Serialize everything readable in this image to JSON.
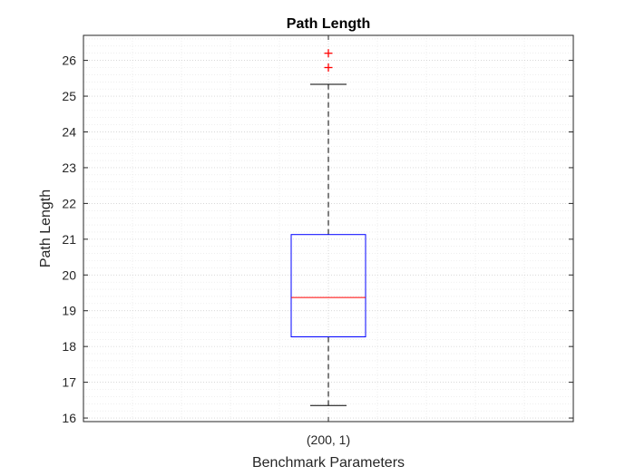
{
  "chart_data": {
    "type": "box",
    "title": "Path Length",
    "xlabel": "Benchmark Parameters",
    "ylabel": "Path Length",
    "categories": [
      "(200, 1)"
    ],
    "ylim": [
      15.9,
      26.7
    ],
    "yticks": [
      16,
      17,
      18,
      19,
      20,
      21,
      22,
      23,
      24,
      25,
      26
    ],
    "grid": true,
    "minor_grid": true,
    "boxes": [
      {
        "category": "(200, 1)",
        "whisker_low": 16.35,
        "q1": 18.27,
        "median": 19.37,
        "q3": 21.13,
        "whisker_high": 25.33,
        "outliers": [
          25.8,
          26.2
        ]
      }
    ],
    "colors": {
      "box": "#0000ff",
      "median": "#ff0000",
      "whisker": "#000000",
      "outlier": "#ff0000"
    }
  }
}
